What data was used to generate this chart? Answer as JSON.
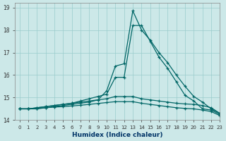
{
  "xlabel": "Humidex (Indice chaleur)",
  "ylabel": "",
  "bg_color": "#cce8e8",
  "grid_color": "#99cccc",
  "line_color": "#006666",
  "xlim": [
    -0.5,
    23
  ],
  "ylim": [
    14.0,
    19.2
  ],
  "yticks": [
    14,
    15,
    16,
    17,
    18,
    19
  ],
  "xticks": [
    0,
    1,
    2,
    3,
    4,
    5,
    6,
    7,
    8,
    9,
    10,
    11,
    12,
    13,
    14,
    15,
    16,
    17,
    18,
    19,
    20,
    21,
    22,
    23
  ],
  "series": [
    [
      14.5,
      14.5,
      14.5,
      14.55,
      14.6,
      14.65,
      14.7,
      14.75,
      14.8,
      14.9,
      15.3,
      16.4,
      16.5,
      18.85,
      18.0,
      17.55,
      17.0,
      16.55,
      16.0,
      15.5,
      15.05,
      14.8,
      14.5,
      14.3
    ],
    [
      14.5,
      14.5,
      14.55,
      14.6,
      14.65,
      14.7,
      14.75,
      14.85,
      14.95,
      15.05,
      15.15,
      15.9,
      15.9,
      18.2,
      18.2,
      17.5,
      16.8,
      16.3,
      15.7,
      15.1,
      14.85,
      14.5,
      14.45,
      14.25
    ],
    [
      14.5,
      14.5,
      14.55,
      14.6,
      14.65,
      14.7,
      14.75,
      14.8,
      14.85,
      14.9,
      14.95,
      15.05,
      15.05,
      15.05,
      14.95,
      14.9,
      14.85,
      14.8,
      14.75,
      14.72,
      14.7,
      14.65,
      14.55,
      14.3
    ],
    [
      14.5,
      14.5,
      14.52,
      14.55,
      14.58,
      14.6,
      14.63,
      14.66,
      14.7,
      14.74,
      14.78,
      14.82,
      14.82,
      14.82,
      14.75,
      14.7,
      14.65,
      14.6,
      14.55,
      14.52,
      14.5,
      14.45,
      14.38,
      14.2
    ]
  ]
}
